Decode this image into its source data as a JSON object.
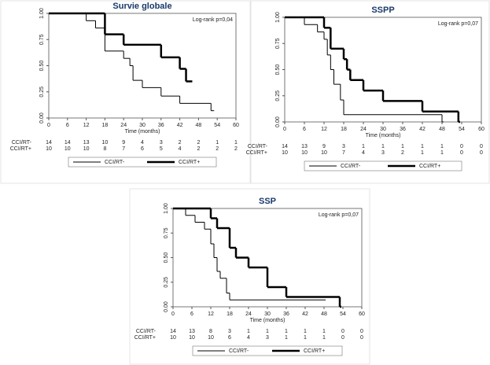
{
  "chart_data": [
    {
      "type": "step",
      "title": "Survie globale",
      "annotation": "Log-rank p=0,04",
      "x_label": "Time (months)",
      "xlim": [
        0,
        60
      ],
      "xticks": [
        0,
        6,
        12,
        18,
        24,
        30,
        36,
        42,
        48,
        54,
        60
      ],
      "ylim": [
        0,
        1
      ],
      "yticks": [
        {
          "value": 0,
          "label": "0.00"
        },
        {
          "value": 0.25,
          "label": "0.25"
        },
        {
          "value": 0.5,
          "label": "0.50"
        },
        {
          "value": 0.75,
          "label": "0.75"
        },
        {
          "value": 1,
          "label": "1.00"
        }
      ],
      "legend": "bottom",
      "series": [
        {
          "name": "CCI/RT-",
          "color": "#000000",
          "line_width": 1,
          "x": [
            0,
            12,
            15,
            18,
            24,
            26,
            27,
            30,
            36,
            42,
            52,
            53
          ],
          "values": [
            1,
            0.93,
            0.86,
            0.64,
            0.57,
            0.5,
            0.36,
            0.29,
            0.21,
            0.14,
            0.07,
            0.07
          ]
        },
        {
          "name": "CCI/RT+",
          "color": "#000000",
          "line_width": 2.5,
          "x": [
            0,
            18,
            24,
            36,
            42,
            44,
            46
          ],
          "values": [
            1,
            0.8,
            0.7,
            0.58,
            0.47,
            0.35,
            0.35
          ]
        }
      ],
      "risk_table": [
        {
          "name": "CCI/RT-",
          "values": [
            14,
            14,
            13,
            10,
            9,
            4,
            3,
            2,
            2,
            1,
            1
          ]
        },
        {
          "name": "CCI/RT+",
          "values": [
            10,
            10,
            10,
            8,
            7,
            6,
            5,
            4,
            2,
            2,
            2
          ]
        }
      ]
    },
    {
      "type": "step",
      "title": "SSPP",
      "annotation": "Log-rank p=0,07",
      "x_label": "Time (months)",
      "xlim": [
        0,
        60
      ],
      "xticks": [
        0,
        6,
        12,
        18,
        24,
        30,
        36,
        42,
        48,
        54,
        60
      ],
      "ylim": [
        0,
        1
      ],
      "yticks": [
        {
          "value": 0,
          "label": "0.00"
        },
        {
          "value": 0.25,
          "label": "0.25"
        },
        {
          "value": 0.5,
          "label": "0.50"
        },
        {
          "value": 0.75,
          "label": "0.75"
        },
        {
          "value": 1,
          "label": "1.00"
        }
      ],
      "legend": "bottom",
      "series": [
        {
          "name": "CCI/RT-",
          "color": "#000000",
          "line_width": 1,
          "x": [
            0,
            6,
            10,
            12,
            13,
            14,
            15,
            17,
            18,
            48,
            48.5
          ],
          "values": [
            1,
            0.93,
            0.86,
            0.79,
            0.64,
            0.5,
            0.36,
            0.21,
            0.07,
            0,
            0
          ]
        },
        {
          "name": "CCI/RT+",
          "color": "#000000",
          "line_width": 2.5,
          "x": [
            0,
            12,
            14,
            18,
            19,
            20,
            24,
            30,
            42,
            53,
            53.5
          ],
          "values": [
            1,
            0.9,
            0.7,
            0.6,
            0.5,
            0.4,
            0.3,
            0.2,
            0.1,
            0,
            0
          ]
        }
      ],
      "risk_table": [
        {
          "name": "CCI/RT-",
          "values": [
            14,
            13,
            9,
            3,
            1,
            1,
            1,
            1,
            1,
            0,
            0
          ]
        },
        {
          "name": "CCI/RT+",
          "values": [
            10,
            10,
            10,
            7,
            4,
            3,
            2,
            1,
            1,
            0,
            0
          ]
        }
      ]
    },
    {
      "type": "step",
      "title": "SSP",
      "annotation": "Log-rank p=0,07",
      "x_label": "Time (months)",
      "xlim": [
        0,
        60
      ],
      "xticks": [
        0,
        6,
        12,
        18,
        24,
        30,
        36,
        42,
        48,
        54,
        60
      ],
      "ylim": [
        0,
        1
      ],
      "yticks": [
        {
          "value": 0,
          "label": "0.00"
        },
        {
          "value": 0.25,
          "label": "0.25"
        },
        {
          "value": 0.5,
          "label": "0.50"
        },
        {
          "value": 0.75,
          "label": "0.75"
        },
        {
          "value": 1,
          "label": "1.00"
        }
      ],
      "legend": "bottom",
      "series": [
        {
          "name": "CCI/RT-",
          "color": "#000000",
          "line_width": 1,
          "x": [
            0,
            4,
            7,
            10,
            12,
            13,
            14,
            15,
            17,
            18,
            48,
            48.5
          ],
          "values": [
            1,
            0.93,
            0.86,
            0.79,
            0.64,
            0.5,
            0.36,
            0.29,
            0.14,
            0.07,
            0.07,
            0.07
          ]
        },
        {
          "name": "CCI/RT+",
          "color": "#000000",
          "line_width": 2.5,
          "x": [
            0,
            12,
            14,
            18,
            20,
            24,
            30,
            36,
            53,
            53.5
          ],
          "values": [
            1,
            0.9,
            0.8,
            0.6,
            0.5,
            0.4,
            0.2,
            0.1,
            0,
            0
          ]
        }
      ],
      "risk_table": [
        {
          "name": "CCI/RT-",
          "values": [
            14,
            13,
            8,
            3,
            1,
            1,
            1,
            1,
            1,
            0,
            0
          ]
        },
        {
          "name": "CCI/RT+",
          "values": [
            10,
            10,
            10,
            6,
            4,
            3,
            1,
            1,
            1,
            0,
            0
          ]
        }
      ]
    }
  ]
}
